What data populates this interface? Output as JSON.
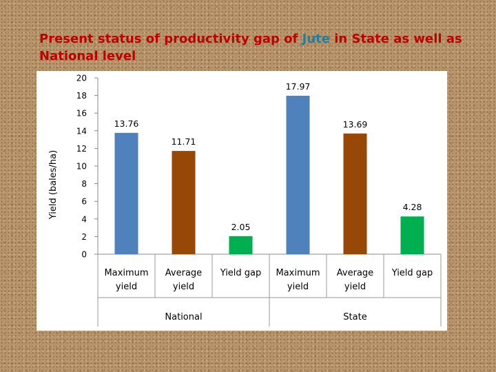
{
  "slide": {
    "title_part1": "Present status of productivity gap of ",
    "title_accent": "Jute",
    "title_part2": " in State as well as National level"
  },
  "colors": {
    "title": "#c00000",
    "accent": "#1f7fa0",
    "maximum_yield": "#4f81bd",
    "average_yield": "#974806",
    "yield_gap": "#00b050"
  },
  "chart_data": {
    "type": "bar",
    "ylabel": "Yield (bales/ha)",
    "ylim": [
      0,
      20
    ],
    "yticks": [
      0,
      2,
      4,
      6,
      8,
      10,
      12,
      14,
      16,
      18,
      20
    ],
    "grid": false,
    "legend": "none",
    "groups": [
      {
        "name": "National",
        "categories": [
          "Maximum yield",
          "Average yield",
          "Yield gap"
        ],
        "values": [
          13.76,
          11.71,
          2.05
        ],
        "labels": [
          "13.76",
          "11.71",
          "2.05"
        ]
      },
      {
        "name": "State",
        "categories": [
          "Maximum yield",
          "Average yield",
          "Yield gap"
        ],
        "values": [
          17.97,
          13.69,
          4.28
        ],
        "labels": [
          "17.97",
          "13.69",
          "4.28"
        ]
      }
    ]
  }
}
